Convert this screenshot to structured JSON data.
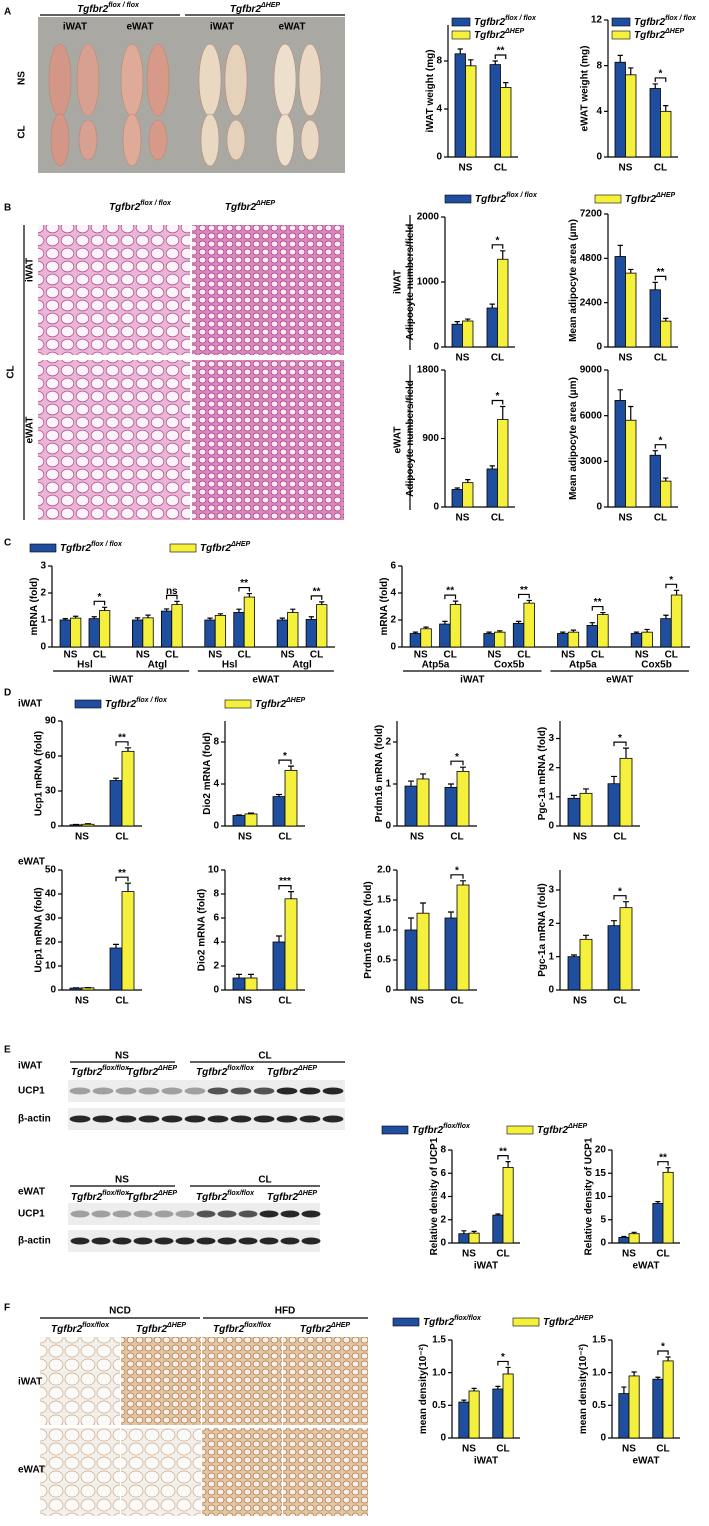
{
  "figure": {
    "A": {
      "letter": "A",
      "genotypes": [
        "Tgfbr2flox / flox",
        "Tgfbr2ΔHEP"
      ],
      "tissues": [
        "iWAT",
        "eWAT"
      ],
      "treatments": [
        "NS",
        "CL"
      ]
    },
    "B": {
      "letter": "B",
      "genotypes": [
        "Tgfbr2flox / flox",
        "Tgfbr2ΔHEP"
      ],
      "treatment": "CL",
      "tissues": [
        "iWAT",
        "eWAT"
      ]
    },
    "C": {
      "letter": "C"
    },
    "D": {
      "letter": "D",
      "tissues": [
        "iWAT",
        "eWAT"
      ]
    },
    "E": {
      "letter": "E",
      "blots": [
        {
          "tissue": "iWAT",
          "treatments": [
            "NS",
            "CL"
          ],
          "genotypes": [
            "Tgfbr2flox/flox",
            "Tgfbr2ΔHEP"
          ],
          "proteins": [
            "UCP1",
            "β-actin"
          ]
        },
        {
          "tissue": "eWAT",
          "treatments": [
            "NS",
            "CL"
          ],
          "genotypes": [
            "Tgfbr2flox/flox",
            "Tgfbr2ΔHEP"
          ],
          "proteins": [
            "UCP1",
            "β-actin"
          ]
        }
      ]
    },
    "F": {
      "letter": "F",
      "diets": [
        "NCD",
        "HFD"
      ],
      "genotypes": [
        "Tgfbr2flox/flox",
        "Tgfbr2ΔHEP"
      ],
      "tissues": [
        "iWAT",
        "eWAT"
      ]
    }
  },
  "chart_data": [
    {
      "type": "bar",
      "ylabel": "iWAT weight (mg)",
      "categories": [
        "NS",
        "CL"
      ],
      "series": [
        {
          "name": "Tgfbr2flox / flox",
          "color": "#1f4e9e",
          "values": [
            8.6,
            7.7
          ],
          "errors": [
            0.4,
            0.3
          ]
        },
        {
          "name": "Tgfbr2ΔHEP",
          "color": "#f4f03c",
          "values": [
            7.6,
            5.8
          ],
          "errors": [
            0.5,
            0.4
          ]
        }
      ],
      "significance": [
        null,
        "**"
      ],
      "ylim": [
        0,
        11
      ],
      "yticks": [
        0,
        4,
        8
      ]
    },
    {
      "type": "bar",
      "ylabel": "eWAT weight (mg)",
      "categories": [
        "NS",
        "CL"
      ],
      "series": [
        {
          "name": "Tgfbr2flox / flox",
          "color": "#1f4e9e",
          "values": [
            8.3,
            6.0
          ],
          "errors": [
            0.6,
            0.4
          ]
        },
        {
          "name": "Tgfbr2ΔHEP",
          "color": "#f4f03c",
          "values": [
            7.2,
            4.0
          ],
          "errors": [
            0.6,
            0.5
          ]
        }
      ],
      "significance": [
        null,
        "*"
      ],
      "ylim": [
        0,
        12
      ],
      "yticks": [
        0,
        4,
        8,
        12
      ]
    },
    {
      "type": "bar",
      "ylabel": "Adipocyte numbers/field",
      "categories": [
        "NS",
        "CL"
      ],
      "series": [
        {
          "name": "Tgfbr2flox / flox",
          "color": "#1f4e9e",
          "values": [
            350,
            600
          ],
          "errors": [
            40,
            60
          ]
        },
        {
          "name": "Tgfbr2ΔHEP",
          "color": "#f4f03c",
          "values": [
            400,
            1350
          ],
          "errors": [
            30,
            130
          ]
        }
      ],
      "significance": [
        null,
        "*"
      ],
      "ylim": [
        0,
        2000
      ],
      "yticks": [
        0,
        1000,
        2000
      ]
    },
    {
      "type": "bar",
      "ylabel": "Mean adipocyte area (μm)",
      "categories": [
        "NS",
        "CL"
      ],
      "series": [
        {
          "color": "#1f4e9e",
          "values": [
            4900,
            3100
          ],
          "errors": [
            600,
            400
          ]
        },
        {
          "color": "#f4f03c",
          "values": [
            4000,
            1400
          ],
          "errors": [
            200,
            150
          ]
        }
      ],
      "significance": [
        null,
        "**"
      ],
      "ylim": [
        0,
        7200
      ],
      "yticks": [
        0,
        2400,
        4800,
        7200
      ]
    },
    {
      "type": "bar",
      "ylabel": "Adipocyte numbers/field",
      "categories": [
        "NS",
        "CL"
      ],
      "series": [
        {
          "color": "#1f4e9e",
          "values": [
            230,
            500
          ],
          "errors": [
            20,
            40
          ]
        },
        {
          "color": "#f4f03c",
          "values": [
            320,
            1150
          ],
          "errors": [
            40,
            170
          ]
        }
      ],
      "significance": [
        null,
        "*"
      ],
      "ylim": [
        0,
        1800
      ],
      "yticks": [
        0,
        900,
        1800
      ]
    },
    {
      "type": "bar",
      "ylabel": "Mean adipocyte area (μm)",
      "categories": [
        "NS",
        "CL"
      ],
      "series": [
        {
          "color": "#1f4e9e",
          "values": [
            7000,
            3400
          ],
          "errors": [
            700,
            300
          ]
        },
        {
          "color": "#f4f03c",
          "values": [
            5700,
            1700
          ],
          "errors": [
            900,
            200
          ]
        }
      ],
      "significance": [
        null,
        "*"
      ],
      "ylim": [
        0,
        9000
      ],
      "yticks": [
        0,
        3000,
        6000,
        9000
      ]
    },
    {
      "type": "bar",
      "ylabel": "mRNA (fold)",
      "categories": [
        "NS",
        "CL",
        "NS",
        "CL",
        "NS",
        "CL",
        "NS",
        "CL"
      ],
      "genes": [
        "Hsl",
        "Atgl",
        "Hsl",
        "Atgl"
      ],
      "tissues": [
        "iWAT",
        "eWAT"
      ],
      "series": [
        {
          "name": "Tgfbr2flox / flox",
          "color": "#1f4e9e",
          "values": [
            1.0,
            1.05,
            1.0,
            1.33,
            1.0,
            1.28,
            1.0,
            1.02
          ],
          "errors": [
            0.05,
            0.07,
            0.08,
            0.08,
            0.07,
            0.12,
            0.07,
            0.1
          ]
        },
        {
          "name": "Tgfbr2ΔHEP",
          "color": "#f4f03c",
          "values": [
            1.07,
            1.35,
            1.08,
            1.57,
            1.17,
            1.85,
            1.28,
            1.57
          ],
          "errors": [
            0.07,
            0.12,
            0.1,
            0.12,
            0.06,
            0.13,
            0.12,
            0.1
          ]
        }
      ],
      "significance": [
        null,
        "*",
        null,
        "ns",
        null,
        "**",
        null,
        "**"
      ],
      "ylim": [
        0,
        3
      ],
      "yticks": [
        0,
        1,
        2,
        3
      ]
    },
    {
      "type": "bar",
      "ylabel": "mRNA (fold)",
      "categories": [
        "NS",
        "CL",
        "NS",
        "CL",
        "NS",
        "CL",
        "NS",
        "CL"
      ],
      "genes": [
        "Atp5a",
        "Cox5b",
        "Atp5a",
        "Cox5b"
      ],
      "tissues": [
        "iWAT",
        "eWAT"
      ],
      "series": [
        {
          "color": "#1f4e9e",
          "values": [
            1.0,
            1.7,
            1.0,
            1.75,
            1.0,
            1.6,
            1.0,
            2.1
          ],
          "errors": [
            0.1,
            0.2,
            0.1,
            0.15,
            0.1,
            0.2,
            0.1,
            0.25
          ]
        },
        {
          "color": "#f4f03c",
          "values": [
            1.35,
            3.15,
            1.1,
            3.25,
            1.1,
            2.4,
            1.1,
            3.85
          ],
          "errors": [
            0.12,
            0.25,
            0.1,
            0.2,
            0.15,
            0.15,
            0.2,
            0.35
          ]
        }
      ],
      "significance": [
        null,
        "**",
        null,
        "**",
        null,
        "**",
        null,
        "*"
      ],
      "ylim": [
        0,
        6
      ],
      "yticks": [
        0,
        2,
        4,
        6
      ]
    },
    {
      "type": "bar",
      "ylabel": "Ucp1 mRNA (fold)",
      "categories": [
        "NS",
        "CL"
      ],
      "series": [
        {
          "name": "Tgfbr2flox / flox",
          "color": "#1f4e9e",
          "values": [
            1,
            39
          ],
          "errors": [
            0.3,
            2
          ]
        },
        {
          "name": "Tgfbr2ΔHEP",
          "color": "#f4f03c",
          "values": [
            1.5,
            64
          ],
          "errors": [
            0.4,
            3
          ]
        }
      ],
      "significance": [
        null,
        "**"
      ],
      "ylim": [
        0,
        90
      ],
      "yticks": [
        0,
        30,
        60,
        90
      ]
    },
    {
      "type": "bar",
      "ylabel": "Dio2 mRNA (fold)",
      "categories": [
        "NS",
        "CL"
      ],
      "series": [
        {
          "color": "#1f4e9e",
          "values": [
            1.0,
            2.8
          ],
          "errors": [
            0.05,
            0.2
          ]
        },
        {
          "color": "#f4f03c",
          "values": [
            1.15,
            5.3
          ],
          "errors": [
            0.08,
            0.4
          ]
        }
      ],
      "significance": [
        null,
        "*"
      ],
      "ylim": [
        0,
        10
      ],
      "yticks": [
        0,
        4,
        8
      ]
    },
    {
      "type": "bar",
      "ylabel": "Prdm16 mRNA (fold)",
      "categories": [
        "NS",
        "CL"
      ],
      "series": [
        {
          "color": "#1f4e9e",
          "values": [
            0.95,
            0.92
          ],
          "errors": [
            0.12,
            0.08
          ]
        },
        {
          "color": "#f4f03c",
          "values": [
            1.12,
            1.3
          ],
          "errors": [
            0.12,
            0.1
          ]
        }
      ],
      "significance": [
        null,
        "*"
      ],
      "ylim": [
        0,
        2.5
      ],
      "yticks": [
        0,
        1,
        2
      ]
    },
    {
      "type": "bar",
      "ylabel": "Pgc-1a mRNA (fold)",
      "categories": [
        "NS",
        "CL"
      ],
      "series": [
        {
          "color": "#1f4e9e",
          "values": [
            0.95,
            1.45
          ],
          "errors": [
            0.1,
            0.25
          ]
        },
        {
          "color": "#f4f03c",
          "values": [
            1.12,
            2.32
          ],
          "errors": [
            0.15,
            0.35
          ]
        }
      ],
      "significance": [
        null,
        "*"
      ],
      "ylim": [
        0,
        3.6
      ],
      "yticks": [
        0,
        1,
        2,
        3
      ]
    },
    {
      "type": "bar",
      "ylabel": "Ucp1 mRNA (fold)",
      "categories": [
        "NS",
        "CL"
      ],
      "series": [
        {
          "color": "#1f4e9e",
          "values": [
            0.8,
            17.5
          ],
          "errors": [
            0.1,
            1.5
          ]
        },
        {
          "color": "#f4f03c",
          "values": [
            0.9,
            41
          ],
          "errors": [
            0.1,
            3.5
          ]
        }
      ],
      "significance": [
        null,
        "**"
      ],
      "ylim": [
        0,
        50
      ],
      "yticks": [
        0,
        10,
        20,
        30,
        40,
        50
      ]
    },
    {
      "type": "bar",
      "ylabel": "Dio2 mRNA (fold)",
      "categories": [
        "NS",
        "CL"
      ],
      "series": [
        {
          "color": "#1f4e9e",
          "values": [
            1.0,
            4.0
          ],
          "errors": [
            0.3,
            0.5
          ]
        },
        {
          "color": "#f4f03c",
          "values": [
            1.0,
            7.6
          ],
          "errors": [
            0.3,
            0.6
          ]
        }
      ],
      "significance": [
        null,
        "***"
      ],
      "ylim": [
        0,
        10
      ],
      "yticks": [
        0,
        2,
        4,
        6,
        8,
        10
      ]
    },
    {
      "type": "bar",
      "ylabel": "Prdm16 mRNA (fold)",
      "categories": [
        "NS",
        "CL"
      ],
      "series": [
        {
          "color": "#1f4e9e",
          "values": [
            1.0,
            1.2
          ],
          "errors": [
            0.2,
            0.1
          ]
        },
        {
          "color": "#f4f03c",
          "values": [
            1.28,
            1.75
          ],
          "errors": [
            0.17,
            0.07
          ]
        }
      ],
      "significance": [
        null,
        "*"
      ],
      "ylim": [
        0,
        2
      ],
      "yticks": [
        0,
        0.5,
        {
          "value": 1,
          "label": "1.0"
        },
        1.5,
        {
          "value": 2,
          "label": "2.0"
        }
      ]
    },
    {
      "type": "bar",
      "ylabel": "Pgc-1a mRNA (fold)",
      "categories": [
        "NS",
        "CL"
      ],
      "series": [
        {
          "color": "#1f4e9e",
          "values": [
            1.0,
            1.93
          ],
          "errors": [
            0.05,
            0.15
          ]
        },
        {
          "color": "#f4f03c",
          "values": [
            1.52,
            2.47
          ],
          "errors": [
            0.12,
            0.18
          ]
        }
      ],
      "significance": [
        null,
        "*"
      ],
      "ylim": [
        0,
        3.6
      ],
      "yticks": [
        0,
        1,
        2,
        3
      ]
    },
    {
      "type": "bar",
      "ylabel": "Relative density of UCP1",
      "xlabel": "iWAT",
      "categories": [
        "NS",
        "CL"
      ],
      "series": [
        {
          "name": "Tgfbr2flox/flox",
          "color": "#1f4e9e",
          "values": [
            0.8,
            2.4
          ],
          "errors": [
            0.25,
            0.1
          ]
        },
        {
          "name": "Tgfbr2ΔHEP",
          "color": "#f4f03c",
          "values": [
            0.85,
            6.5
          ],
          "errors": [
            0.15,
            0.5
          ]
        }
      ],
      "significance": [
        null,
        "**"
      ],
      "ylim": [
        0,
        8
      ],
      "yticks": [
        0,
        2,
        4,
        6,
        8
      ]
    },
    {
      "type": "bar",
      "ylabel": "Relative density of UCP1",
      "xlabel": "eWAT",
      "categories": [
        "NS",
        "CL"
      ],
      "series": [
        {
          "color": "#1f4e9e",
          "values": [
            1.2,
            8.5
          ],
          "errors": [
            0.2,
            0.4
          ]
        },
        {
          "color": "#f4f03c",
          "values": [
            2.0,
            15.2
          ],
          "errors": [
            0.3,
            1.0
          ]
        }
      ],
      "significance": [
        null,
        "**"
      ],
      "ylim": [
        0,
        20
      ],
      "yticks": [
        0,
        5,
        10,
        15,
        20
      ]
    },
    {
      "type": "bar",
      "ylabel": "mean density(10⁻²)",
      "xlabel": "iWAT",
      "categories": [
        "NS",
        "CL"
      ],
      "series": [
        {
          "name": "Tgfbr2flox/flox",
          "color": "#1f4e9e",
          "values": [
            0.55,
            0.75
          ],
          "errors": [
            0.03,
            0.04
          ]
        },
        {
          "name": "Tgfbr2ΔHEP",
          "color": "#f4f03c",
          "values": [
            0.72,
            0.98
          ],
          "errors": [
            0.04,
            0.1
          ]
        }
      ],
      "significance": [
        null,
        "*"
      ],
      "ylim": [
        0,
        1.5
      ],
      "yticks": [
        0,
        0.5,
        {
          "value": 1,
          "label": "1.0"
        },
        1.5
      ]
    },
    {
      "type": "bar",
      "ylabel": "mean density(10⁻²)",
      "xlabel": "eWAT",
      "categories": [
        "NS",
        "CL"
      ],
      "series": [
        {
          "color": "#1f4e9e",
          "values": [
            0.68,
            0.9
          ],
          "errors": [
            0.1,
            0.03
          ]
        },
        {
          "color": "#f4f03c",
          "values": [
            0.95,
            1.18
          ],
          "errors": [
            0.06,
            0.06
          ]
        }
      ],
      "significance": [
        null,
        "*"
      ],
      "ylim": [
        0,
        1.5
      ],
      "yticks": [
        0,
        0.5,
        {
          "value": 1,
          "label": "1.0"
        },
        1.5
      ]
    }
  ]
}
